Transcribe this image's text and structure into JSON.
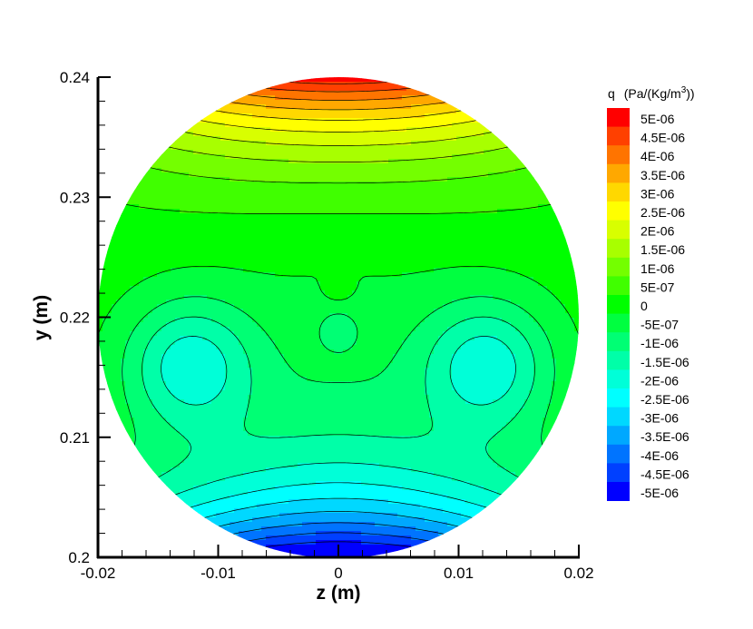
{
  "chart_data": {
    "type": "contour",
    "xlabel": "z  (m)",
    "ylabel": "y  (m)",
    "xlim": [
      -0.02,
      0.02
    ],
    "ylim": [
      0.2,
      0.24
    ],
    "x_ticks": [
      "-0.02",
      "-0.01",
      "0",
      "0.01",
      "0.02"
    ],
    "y_ticks": [
      "0.2",
      "0.21",
      "0.22",
      "0.23",
      "0.24"
    ],
    "domain": {
      "shape": "circle",
      "center": [
        0,
        0.22
      ],
      "radius": 0.02
    },
    "colorbar": {
      "variable": "q",
      "unit_prefix": "(Pa/(Kg/m",
      "unit_superscript": "3",
      "unit_suffix": "))",
      "levels": [
        {
          "label": "5E-06",
          "value": 5e-06,
          "color": "#ff0000"
        },
        {
          "label": "4.5E-06",
          "value": 4.5e-06,
          "color": "#ff4000"
        },
        {
          "label": "4E-06",
          "value": 4e-06,
          "color": "#ff7400"
        },
        {
          "label": "3.5E-06",
          "value": 3.5e-06,
          "color": "#ffa800"
        },
        {
          "label": "3E-06",
          "value": 3e-06,
          "color": "#ffd800"
        },
        {
          "label": "2.5E-06",
          "value": 2.5e-06,
          "color": "#ffff00"
        },
        {
          "label": "2E-06",
          "value": 2e-06,
          "color": "#d8ff00"
        },
        {
          "label": "1.5E-06",
          "value": 1.5e-06,
          "color": "#a8ff00"
        },
        {
          "label": "1E-06",
          "value": 1e-06,
          "color": "#74ff00"
        },
        {
          "label": "5E-07",
          "value": 5e-07,
          "color": "#40ff00"
        },
        {
          "label": "0",
          "value": 0,
          "color": "#00ff00"
        },
        {
          "label": "-5E-07",
          "value": -5e-07,
          "color": "#00ff40"
        },
        {
          "label": "-1E-06",
          "value": -1e-06,
          "color": "#00ff74"
        },
        {
          "label": "-1.5E-06",
          "value": -1.5e-06,
          "color": "#00ffa8"
        },
        {
          "label": "-2E-06",
          "value": -2e-06,
          "color": "#00ffd8"
        },
        {
          "label": "-2.5E-06",
          "value": -2.5e-06,
          "color": "#00ffff"
        },
        {
          "label": "-3E-06",
          "value": -3e-06,
          "color": "#00d8ff"
        },
        {
          "label": "-3.5E-06",
          "value": -3.5e-06,
          "color": "#00a8ff"
        },
        {
          "label": "-4E-06",
          "value": -4e-06,
          "color": "#0074ff"
        },
        {
          "label": "-4.5E-06",
          "value": -4.5e-06,
          "color": "#0040ff"
        },
        {
          "label": "-5E-06",
          "value": -5e-06,
          "color": "#0000ff"
        }
      ]
    }
  }
}
